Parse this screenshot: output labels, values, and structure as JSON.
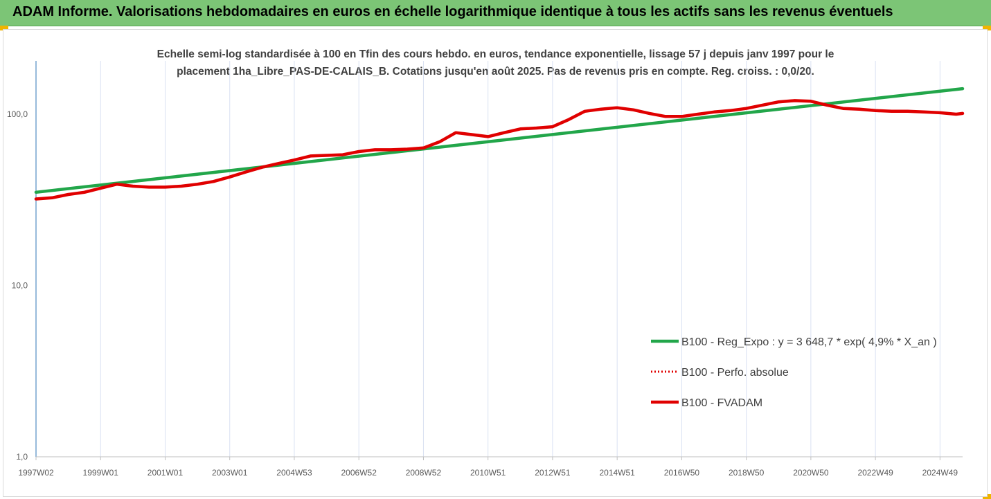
{
  "header": {
    "title": "ADAM Informe. Valorisations hebdomadaires en euros en échelle logarithmique identique à tous les actifs sans les revenus éventuels"
  },
  "colors": {
    "header_bg": "#7cc576",
    "corner_accent": "#f0b400",
    "trend": "#22a64a",
    "fvadam": "#e00000",
    "perf": "#e00000",
    "grid": "#d9e1f2",
    "axis": "#2e75b6"
  },
  "chart_data": {
    "type": "line",
    "title_line1": "Echelle semi-log standardisée à 100 en Tfin des cours hebdo. en euros, tendance exponentielle, lissage 57 j depuis janv 1997 pour le",
    "title_line2": "placement 1ha_Libre_PAS-DE-CALAIS_B. Cotations jusqu'en août 2025. Pas de revenus pris en compte. Reg. croiss. : 0,0/20.",
    "y_scale": "log",
    "ylim": [
      1,
      200
    ],
    "y_ticks": [
      {
        "value": 1,
        "label": "1,0"
      },
      {
        "value": 10,
        "label": "10,0"
      },
      {
        "value": 100,
        "label": "100,0"
      }
    ],
    "xlim": [
      1997.0,
      2025.7
    ],
    "x_ticks": [
      {
        "value": 1997.0,
        "label": "1997W02"
      },
      {
        "value": 1999.0,
        "label": "1999W01"
      },
      {
        "value": 2001.0,
        "label": "2001W01"
      },
      {
        "value": 2003.0,
        "label": "2003W01"
      },
      {
        "value": 2005.0,
        "label": "2004W53"
      },
      {
        "value": 2007.0,
        "label": "2006W52"
      },
      {
        "value": 2009.0,
        "label": "2008W52"
      },
      {
        "value": 2011.0,
        "label": "2010W51"
      },
      {
        "value": 2013.0,
        "label": "2012W51"
      },
      {
        "value": 2015.0,
        "label": "2014W51"
      },
      {
        "value": 2017.0,
        "label": "2016W50"
      },
      {
        "value": 2019.0,
        "label": "2018W50"
      },
      {
        "value": 2021.0,
        "label": "2020W50"
      },
      {
        "value": 2023.0,
        "label": "2022W49"
      },
      {
        "value": 2025.0,
        "label": "2024W49"
      }
    ],
    "grid": "vertical",
    "legend_position": "right",
    "series": [
      {
        "name": "B100 - Reg_Expo : y = 3 648,7 * exp( 4,9% *  X_an )",
        "style": "solid-green",
        "x": [
          1997.0,
          2025.7
        ],
        "y": [
          35.0,
          141.0
        ]
      },
      {
        "name": "B100 - Perfo. absolue",
        "style": "dotted-red",
        "x": [],
        "y": []
      },
      {
        "name": "B100 - FVADAM",
        "style": "solid-red",
        "x": [
          1997.0,
          1997.5,
          1998.0,
          1998.5,
          1999.0,
          1999.5,
          2000.0,
          2000.5,
          2001.0,
          2001.5,
          2002.0,
          2002.5,
          2003.0,
          2003.5,
          2004.0,
          2004.5,
          2005.0,
          2005.5,
          2006.0,
          2006.5,
          2007.0,
          2007.5,
          2008.0,
          2008.5,
          2009.0,
          2009.5,
          2010.0,
          2010.5,
          2011.0,
          2011.5,
          2012.0,
          2012.5,
          2013.0,
          2013.5,
          2014.0,
          2014.5,
          2015.0,
          2015.5,
          2016.0,
          2016.5,
          2017.0,
          2017.5,
          2018.0,
          2018.5,
          2019.0,
          2019.5,
          2020.0,
          2020.5,
          2021.0,
          2021.5,
          2022.0,
          2022.5,
          2023.0,
          2023.5,
          2024.0,
          2024.5,
          2025.0,
          2025.5,
          2025.7
        ],
        "y": [
          32.0,
          32.5,
          34.0,
          35.0,
          37.0,
          39.0,
          38.0,
          37.5,
          37.5,
          38.0,
          39.0,
          40.5,
          43.0,
          46.0,
          49.0,
          51.5,
          54.0,
          57.0,
          57.5,
          58.0,
          60.5,
          62.0,
          62.0,
          62.5,
          63.5,
          69.0,
          78.0,
          76.0,
          74.0,
          78.0,
          82.0,
          83.0,
          84.5,
          93.0,
          104.0,
          107.0,
          109.0,
          106.0,
          101.0,
          97.0,
          97.0,
          100.0,
          103.0,
          105.0,
          108.0,
          113.0,
          118.0,
          120.0,
          119.0,
          113.0,
          108.0,
          107.0,
          105.0,
          104.0,
          104.0,
          103.0,
          102.0,
          100.0,
          101.0
        ]
      }
    ]
  }
}
